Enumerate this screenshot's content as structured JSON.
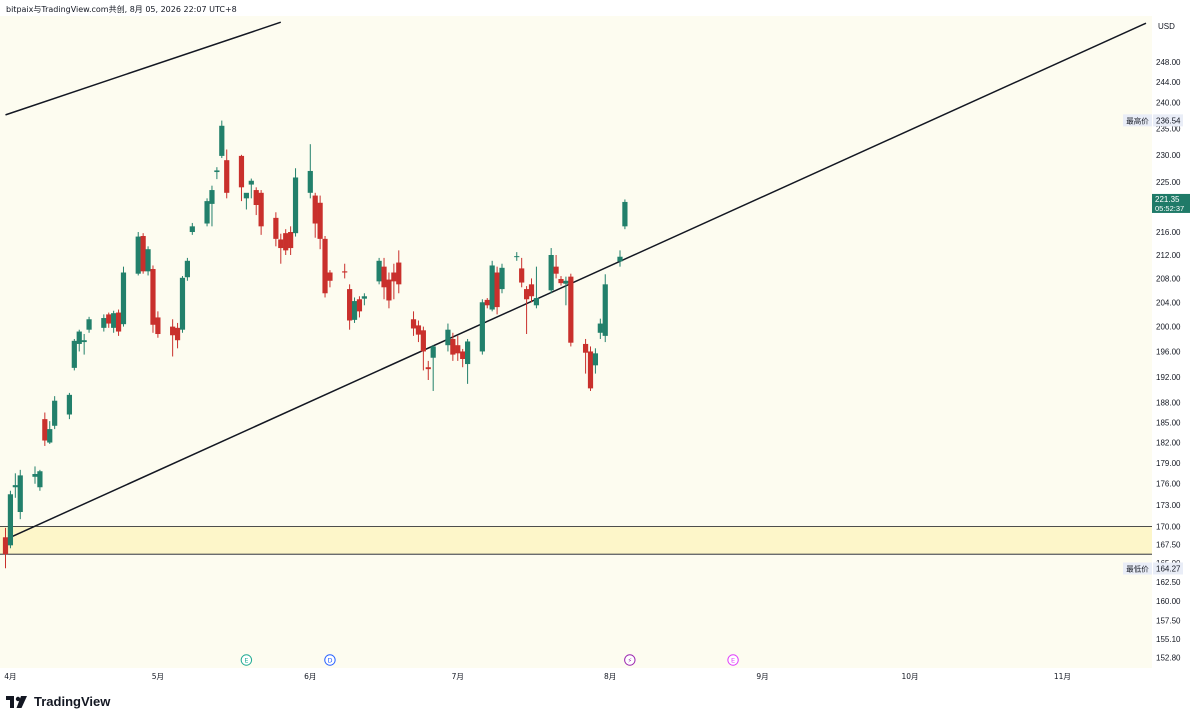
{
  "header": {
    "attribution": "bitpaix与TradingView.com共创, 8月 05, 2026 22:07 UTC+8"
  },
  "brand": {
    "name": "TradingView"
  },
  "price_scale": {
    "currency": "USD",
    "high_label": "最高价",
    "high_value": "236.54",
    "low_label": "最低价",
    "low_value": "164.27",
    "last_price": "221.35",
    "countdown": "05:52:37"
  },
  "events": [
    {
      "letter": "E",
      "date": "2026-05-19",
      "color": "#22ab94"
    },
    {
      "letter": "D",
      "date": "2026-06-05",
      "color": "#2962ff"
    },
    {
      "letter": "⚡",
      "date": "2026-08-05",
      "color": "#9c27b0"
    },
    {
      "letter": "E",
      "date": "2026-08-26",
      "color": "#e040fb"
    }
  ],
  "colors": {
    "background": "#fdfcf0",
    "zone": "#fdf6c9",
    "up": "#22806b",
    "down": "#c9302c",
    "line": "#131722",
    "last_price_bg": "#1f7a68"
  },
  "chart_data": {
    "type": "candlestick",
    "x_axis": {
      "type": "date",
      "range": [
        "2026-03-31",
        "2026-11-18"
      ],
      "tick_labels": [
        {
          "date": "2026-04-01",
          "label": "4月"
        },
        {
          "date": "2026-05-01",
          "label": "5月"
        },
        {
          "date": "2026-06-01",
          "label": "6月"
        },
        {
          "date": "2026-07-01",
          "label": "7月"
        },
        {
          "date": "2026-08-01",
          "label": "8月"
        },
        {
          "date": "2026-09-01",
          "label": "9月"
        },
        {
          "date": "2026-10-01",
          "label": "10月"
        },
        {
          "date": "2026-11-01",
          "label": "11月"
        }
      ]
    },
    "y_axis": {
      "scale": "log",
      "range": [
        151.5,
        257.5
      ],
      "tick_labels": [
        "152.80",
        "155.10",
        "157.50",
        "160.00",
        "162.50",
        "165.00",
        "167.50",
        "170.00",
        "173.00",
        "176.00",
        "179.00",
        "182.00",
        "185.00",
        "188.00",
        "192.00",
        "196.00",
        "200.00",
        "204.00",
        "208.00",
        "212.00",
        "216.00",
        "225.00",
        "230.00",
        "235.00",
        "240.00",
        "244.00",
        "248.00"
      ]
    },
    "support_zone": [
      166.2,
      170.0
    ],
    "trendlines": [
      {
        "from": {
          "date": "2026-03-31",
          "price": 237.6
        },
        "to": {
          "date": "2026-05-26",
          "price": 256.2
        }
      },
      {
        "from": {
          "date": "2026-04-01",
          "price": 168.5
        },
        "to": {
          "date": "2026-11-18",
          "price": 256.0
        }
      }
    ],
    "candles": [
      {
        "date": "2026-03-31",
        "o": 168.5,
        "h": 169.8,
        "l": 164.3,
        "c": 166.2
      },
      {
        "date": "2026-04-01",
        "o": 167.4,
        "h": 175.0,
        "l": 167.0,
        "c": 174.5
      },
      {
        "date": "2026-04-02",
        "o": 175.5,
        "h": 177.5,
        "l": 174.0,
        "c": 175.8
      },
      {
        "date": "2026-04-03",
        "o": 172.0,
        "h": 178.0,
        "l": 171.0,
        "c": 177.2
      },
      {
        "date": "2026-04-06",
        "o": 177.0,
        "h": 178.5,
        "l": 176.0,
        "c": 177.4
      },
      {
        "date": "2026-04-07",
        "o": 175.5,
        "h": 178.0,
        "l": 175.0,
        "c": 177.8
      },
      {
        "date": "2026-04-08",
        "o": 185.5,
        "h": 186.5,
        "l": 181.5,
        "c": 182.3
      },
      {
        "date": "2026-04-09",
        "o": 182.0,
        "h": 185.2,
        "l": 181.8,
        "c": 184.0
      },
      {
        "date": "2026-04-10",
        "o": 184.5,
        "h": 189.0,
        "l": 184.0,
        "c": 188.3
      },
      {
        "date": "2026-04-13",
        "o": 186.2,
        "h": 189.5,
        "l": 185.5,
        "c": 189.2
      },
      {
        "date": "2026-04-14",
        "o": 193.4,
        "h": 198.0,
        "l": 193.0,
        "c": 197.7
      },
      {
        "date": "2026-04-15",
        "o": 197.2,
        "h": 199.5,
        "l": 196.0,
        "c": 199.2
      },
      {
        "date": "2026-04-16",
        "o": 197.5,
        "h": 198.8,
        "l": 195.5,
        "c": 197.8
      },
      {
        "date": "2026-04-17",
        "o": 199.5,
        "h": 201.6,
        "l": 199.0,
        "c": 201.2
      },
      {
        "date": "2026-04-20",
        "o": 199.8,
        "h": 202.0,
        "l": 199.2,
        "c": 201.4
      },
      {
        "date": "2026-04-21",
        "o": 202.0,
        "h": 202.3,
        "l": 199.8,
        "c": 200.5
      },
      {
        "date": "2026-04-22",
        "o": 199.8,
        "h": 202.6,
        "l": 199.0,
        "c": 202.2
      },
      {
        "date": "2026-04-23",
        "o": 202.3,
        "h": 202.8,
        "l": 198.5,
        "c": 199.2
      },
      {
        "date": "2026-04-24",
        "o": 200.4,
        "h": 210.0,
        "l": 200.0,
        "c": 209.0
      },
      {
        "date": "2026-04-27",
        "o": 208.8,
        "h": 216.0,
        "l": 208.5,
        "c": 215.2
      },
      {
        "date": "2026-04-28",
        "o": 215.3,
        "h": 215.8,
        "l": 208.8,
        "c": 209.2
      },
      {
        "date": "2026-04-29",
        "o": 209.2,
        "h": 213.5,
        "l": 208.5,
        "c": 213.0
      },
      {
        "date": "2026-04-30",
        "o": 209.6,
        "h": 210.2,
        "l": 199.0,
        "c": 200.3
      },
      {
        "date": "2026-05-01",
        "o": 201.5,
        "h": 202.5,
        "l": 198.2,
        "c": 198.8
      },
      {
        "date": "2026-05-04",
        "o": 200.0,
        "h": 201.2,
        "l": 195.2,
        "c": 198.6
      },
      {
        "date": "2026-05-05",
        "o": 199.8,
        "h": 200.6,
        "l": 196.5,
        "c": 197.8
      },
      {
        "date": "2026-05-06",
        "o": 199.5,
        "h": 208.4,
        "l": 199.0,
        "c": 208.1
      },
      {
        "date": "2026-05-07",
        "o": 208.2,
        "h": 211.5,
        "l": 207.6,
        "c": 211.0
      },
      {
        "date": "2026-05-08",
        "o": 216.0,
        "h": 217.6,
        "l": 215.5,
        "c": 217.0
      },
      {
        "date": "2026-05-11",
        "o": 217.5,
        "h": 222.0,
        "l": 217.0,
        "c": 221.5
      },
      {
        "date": "2026-05-12",
        "o": 221.0,
        "h": 224.3,
        "l": 217.0,
        "c": 223.5
      },
      {
        "date": "2026-05-13",
        "o": 226.8,
        "h": 227.7,
        "l": 225.5,
        "c": 227.1
      },
      {
        "date": "2026-05-14",
        "o": 229.8,
        "h": 236.5,
        "l": 229.4,
        "c": 235.5
      },
      {
        "date": "2026-05-15",
        "o": 229.0,
        "h": 231.0,
        "l": 222.0,
        "c": 223.0
      },
      {
        "date": "2026-05-18",
        "o": 229.8,
        "h": 230.0,
        "l": 221.5,
        "c": 224.0
      },
      {
        "date": "2026-05-19",
        "o": 222.0,
        "h": 222.8,
        "l": 220.0,
        "c": 223.0
      },
      {
        "date": "2026-05-20",
        "o": 224.5,
        "h": 225.6,
        "l": 222.0,
        "c": 225.2
      },
      {
        "date": "2026-05-21",
        "o": 223.5,
        "h": 224.0,
        "l": 219.0,
        "c": 220.8
      },
      {
        "date": "2026-05-22",
        "o": 223.0,
        "h": 223.5,
        "l": 215.5,
        "c": 217.0
      },
      {
        "date": "2026-05-25",
        "o": 218.5,
        "h": 219.5,
        "l": 213.5,
        "c": 214.8
      },
      {
        "date": "2026-05-26",
        "o": 214.7,
        "h": 215.7,
        "l": 210.5,
        "c": 213.2
      },
      {
        "date": "2026-05-27",
        "o": 215.8,
        "h": 216.5,
        "l": 212.0,
        "c": 212.8
      },
      {
        "date": "2026-05-28",
        "o": 216.0,
        "h": 217.0,
        "l": 212.0,
        "c": 213.2
      },
      {
        "date": "2026-05-29",
        "o": 215.8,
        "h": 227.5,
        "l": 215.2,
        "c": 225.8
      },
      {
        "date": "2026-06-01",
        "o": 223.0,
        "h": 232.0,
        "l": 222.0,
        "c": 227.0
      },
      {
        "date": "2026-06-02",
        "o": 222.5,
        "h": 223.0,
        "l": 215.0,
        "c": 217.5
      },
      {
        "date": "2026-06-03",
        "o": 221.2,
        "h": 222.5,
        "l": 213.0,
        "c": 214.8
      },
      {
        "date": "2026-06-04",
        "o": 214.8,
        "h": 215.3,
        "l": 204.8,
        "c": 205.5
      },
      {
        "date": "2026-06-05",
        "o": 209.0,
        "h": 209.4,
        "l": 206.5,
        "c": 207.6
      },
      {
        "date": "2026-06-08",
        "o": 209.2,
        "h": 210.5,
        "l": 208.0,
        "c": 209.0
      },
      {
        "date": "2026-06-09",
        "o": 206.2,
        "h": 207.0,
        "l": 199.5,
        "c": 201.0
      },
      {
        "date": "2026-06-10",
        "o": 201.1,
        "h": 204.8,
        "l": 200.6,
        "c": 204.2
      },
      {
        "date": "2026-06-11",
        "o": 204.5,
        "h": 205.0,
        "l": 201.5,
        "c": 202.5
      },
      {
        "date": "2026-06-12",
        "o": 204.6,
        "h": 205.5,
        "l": 203.5,
        "c": 205.0
      },
      {
        "date": "2026-06-15",
        "o": 207.5,
        "h": 211.5,
        "l": 207.0,
        "c": 211.0
      },
      {
        "date": "2026-06-16",
        "o": 210.0,
        "h": 211.5,
        "l": 204.5,
        "c": 206.5
      },
      {
        "date": "2026-06-17",
        "o": 207.8,
        "h": 209.0,
        "l": 203.0,
        "c": 204.3
      },
      {
        "date": "2026-06-18",
        "o": 209.0,
        "h": 210.5,
        "l": 204.5,
        "c": 207.5
      },
      {
        "date": "2026-06-19",
        "o": 210.7,
        "h": 212.8,
        "l": 205.5,
        "c": 207.0
      },
      {
        "date": "2026-06-22",
        "o": 201.2,
        "h": 202.5,
        "l": 198.5,
        "c": 199.7
      },
      {
        "date": "2026-06-23",
        "o": 200.2,
        "h": 201.0,
        "l": 197.5,
        "c": 198.7
      },
      {
        "date": "2026-06-24",
        "o": 199.4,
        "h": 200.0,
        "l": 193.0,
        "c": 196.0
      },
      {
        "date": "2026-06-25",
        "o": 193.5,
        "h": 194.5,
        "l": 191.5,
        "c": 193.2
      },
      {
        "date": "2026-06-26",
        "o": 195.0,
        "h": 197.0,
        "l": 189.8,
        "c": 196.8
      },
      {
        "date": "2026-06-29",
        "o": 197.0,
        "h": 200.5,
        "l": 196.0,
        "c": 199.5
      },
      {
        "date": "2026-06-30",
        "o": 198.0,
        "h": 199.0,
        "l": 194.5,
        "c": 195.5
      },
      {
        "date": "2026-07-01",
        "o": 197.0,
        "h": 198.5,
        "l": 194.5,
        "c": 195.7
      },
      {
        "date": "2026-07-02",
        "o": 196.0,
        "h": 196.4,
        "l": 193.5,
        "c": 194.8
      },
      {
        "date": "2026-07-03",
        "o": 194.0,
        "h": 198.0,
        "l": 190.9,
        "c": 197.6
      },
      {
        "date": "2026-07-06",
        "o": 196.0,
        "h": 204.5,
        "l": 195.5,
        "c": 204.0
      },
      {
        "date": "2026-07-07",
        "o": 204.4,
        "h": 204.7,
        "l": 203.0,
        "c": 203.5
      },
      {
        "date": "2026-07-08",
        "o": 202.8,
        "h": 211.0,
        "l": 202.5,
        "c": 210.2
      },
      {
        "date": "2026-07-09",
        "o": 209.0,
        "h": 210.0,
        "l": 202.0,
        "c": 203.2
      },
      {
        "date": "2026-07-10",
        "o": 206.2,
        "h": 210.5,
        "l": 205.5,
        "c": 209.8
      },
      {
        "date": "2026-07-13",
        "o": 211.7,
        "h": 212.5,
        "l": 211.0,
        "c": 211.8
      },
      {
        "date": "2026-07-14",
        "o": 209.7,
        "h": 211.5,
        "l": 206.5,
        "c": 207.3
      },
      {
        "date": "2026-07-15",
        "o": 206.2,
        "h": 206.7,
        "l": 198.8,
        "c": 204.5
      },
      {
        "date": "2026-07-16",
        "o": 207.0,
        "h": 208.0,
        "l": 204.0,
        "c": 205.0
      },
      {
        "date": "2026-07-17",
        "o": 203.5,
        "h": 210.0,
        "l": 203.0,
        "c": 204.7
      },
      {
        "date": "2026-07-20",
        "o": 206.0,
        "h": 213.2,
        "l": 205.5,
        "c": 212.0
      },
      {
        "date": "2026-07-21",
        "o": 210.0,
        "h": 212.0,
        "l": 208.0,
        "c": 208.8
      },
      {
        "date": "2026-07-22",
        "o": 207.9,
        "h": 208.4,
        "l": 206.8,
        "c": 207.2
      },
      {
        "date": "2026-07-23",
        "o": 207.1,
        "h": 208.3,
        "l": 203.5,
        "c": 207.6
      },
      {
        "date": "2026-07-24",
        "o": 208.3,
        "h": 208.8,
        "l": 196.8,
        "c": 197.4
      },
      {
        "date": "2026-07-27",
        "o": 197.2,
        "h": 198.0,
        "l": 192.5,
        "c": 195.8
      },
      {
        "date": "2026-07-28",
        "o": 196.0,
        "h": 196.8,
        "l": 189.8,
        "c": 190.2
      },
      {
        "date": "2026-07-29",
        "o": 193.8,
        "h": 196.5,
        "l": 192.5,
        "c": 195.7
      },
      {
        "date": "2026-07-30",
        "o": 199.0,
        "h": 201.3,
        "l": 198.0,
        "c": 200.5
      },
      {
        "date": "2026-07-31",
        "o": 198.5,
        "h": 208.7,
        "l": 197.5,
        "c": 207.0
      },
      {
        "date": "2026-08-03",
        "o": 210.9,
        "h": 212.8,
        "l": 210.0,
        "c": 211.7
      },
      {
        "date": "2026-08-04",
        "o": 217.0,
        "h": 221.8,
        "l": 216.5,
        "c": 221.35
      }
    ]
  }
}
